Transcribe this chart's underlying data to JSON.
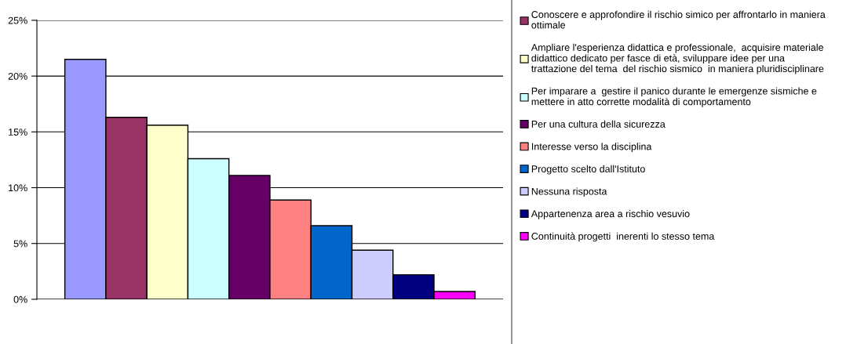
{
  "chart_data": {
    "type": "bar",
    "categories": [
      null
    ],
    "series": [
      {
        "color": "#9999ff",
        "values": [
          21.5
        ]
      },
      {
        "name": "Conoscere e approfondire il rischio simico per affrontarlo in maniera\nottimale",
        "color": "#993366",
        "values": [
          16.3
        ]
      },
      {
        "name": "Ampliare l'esperienza didattica e professionale,  acquisire materiale\ndidattico dedicato per fasce di età, sviluppare idee per una\ntrattazione del tema  del rischio sismico  in maniera pluridisciplinare",
        "color": "#ffffcc",
        "values": [
          15.6
        ]
      },
      {
        "name": "Per imparare a  gestire il panico durante le emergenze sismiche e\nmettere in atto corrette modalità di comportamento",
        "color": "#ccffff",
        "values": [
          12.6
        ]
      },
      {
        "name": "Per una cultura della sicurezza",
        "color": "#660066",
        "values": [
          11.1
        ]
      },
      {
        "name": "Interesse verso la disciplina",
        "color": "#ff8080",
        "values": [
          8.9
        ]
      },
      {
        "name": "Progetto scelto dall'Istituto",
        "color": "#0066cc",
        "values": [
          6.6
        ]
      },
      {
        "name": "Nessuna risposta",
        "color": "#ccccff",
        "values": [
          4.4
        ]
      },
      {
        "name": "Appartenenza area a rischio vesuvio",
        "color": "#000080",
        "values": [
          2.2
        ]
      },
      {
        "name": "Continuità progetti  inerenti lo stesso tema",
        "color": "#ff00ff",
        "values": [
          0.7
        ]
      }
    ],
    "ylim": [
      0,
      25
    ],
    "yticks": [
      {
        "value": 0,
        "label": "0%"
      },
      {
        "value": 5,
        "label": "5%"
      },
      {
        "value": 10,
        "label": "10%"
      },
      {
        "value": 15,
        "label": "15%"
      },
      {
        "value": 20,
        "label": "20%"
      },
      {
        "value": 25,
        "label": "25%"
      }
    ],
    "grid": "y",
    "legend": "right",
    "tick_labels": "y"
  }
}
